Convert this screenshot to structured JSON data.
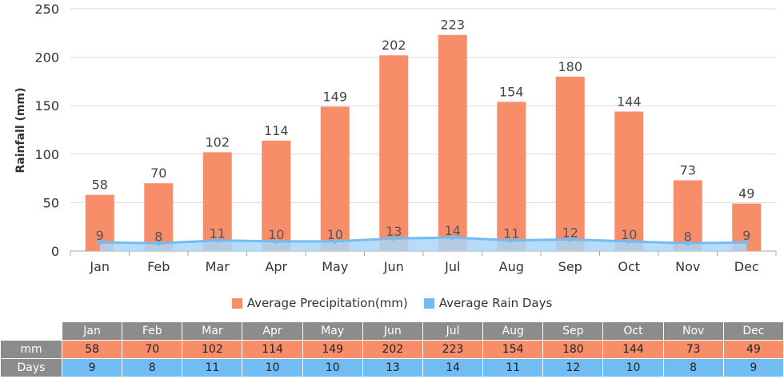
{
  "colors": {
    "precip": "#f78e69",
    "days": "#72bcf4",
    "days_fill": "#a9d6f8",
    "header": "#8c8c8c",
    "grid": "#d9d9d9"
  },
  "chart_data": {
    "type": "bar",
    "categories": [
      "Jan",
      "Feb",
      "Mar",
      "Apr",
      "May",
      "Jun",
      "Jul",
      "Aug",
      "Sep",
      "Oct",
      "Nov",
      "Dec"
    ],
    "series": [
      {
        "name": "Average Precipitation(mm)",
        "type": "bar",
        "values": [
          58,
          70,
          102,
          114,
          149,
          202,
          223,
          154,
          180,
          144,
          73,
          49
        ]
      },
      {
        "name": "Average Rain Days",
        "type": "area",
        "values": [
          9,
          8,
          11,
          10,
          10,
          13,
          14,
          11,
          12,
          10,
          8,
          9
        ]
      }
    ],
    "ylabel": "Rainfall (mm)",
    "ylim": [
      0,
      250
    ],
    "yticks": [
      0,
      50,
      100,
      150,
      200,
      250
    ],
    "grid": true,
    "legend": "bottom"
  },
  "table": {
    "months": [
      "Jan",
      "Feb",
      "Mar",
      "Apr",
      "May",
      "Jun",
      "Jul",
      "Aug",
      "Sep",
      "Oct",
      "Nov",
      "Dec"
    ],
    "rows": [
      {
        "label": "mm",
        "values": [
          "58",
          "70",
          "102",
          "114",
          "149",
          "202",
          "223",
          "154",
          "180",
          "144",
          "73",
          "49"
        ]
      },
      {
        "label": "Days",
        "values": [
          "9",
          "8",
          "11",
          "10",
          "10",
          "13",
          "14",
          "11",
          "12",
          "10",
          "8",
          "9"
        ]
      }
    ]
  }
}
